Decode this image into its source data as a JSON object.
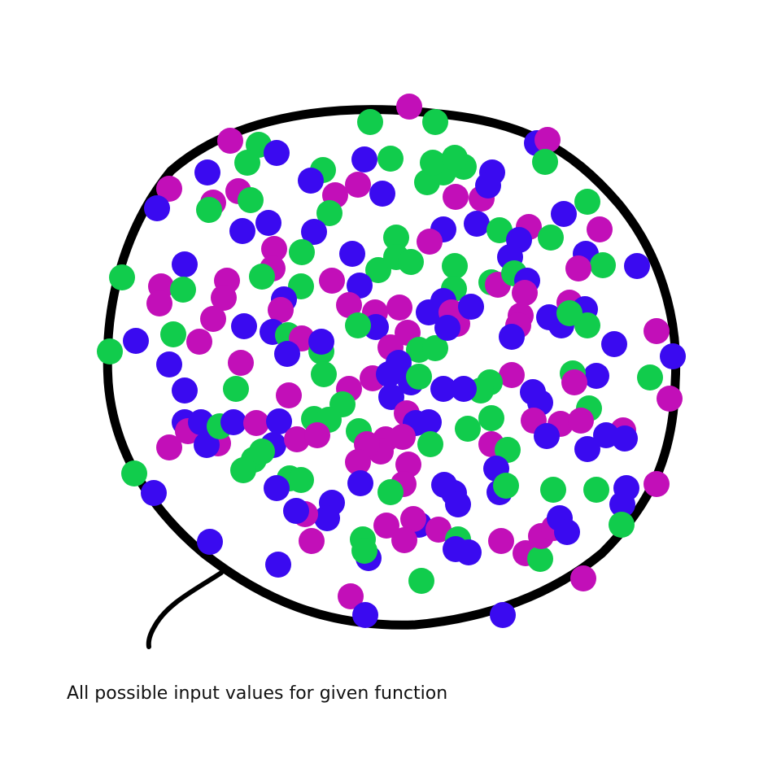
{
  "caption": "All possible input values for given function",
  "colors": {
    "outline": "#000000",
    "dot_blue": "#3a0af0",
    "dot_green": "#11cc4c",
    "dot_magenta": "#c20fb8",
    "background": "#ffffff"
  }
}
